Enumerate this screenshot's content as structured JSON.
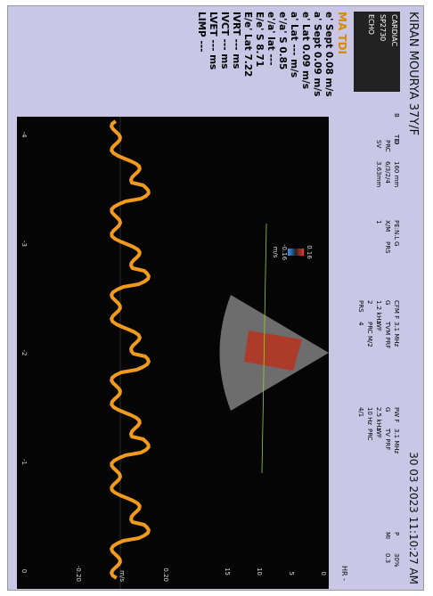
{
  "header": {
    "patient": "KIRAN MOURYA 37Y/F",
    "datetime": "30 03 2023 11:10:27 AM",
    "preset": [
      "CARDIAC",
      "SP2730",
      "ECHO"
    ],
    "params": [
      [
        "B",
        "TEI"
      ],
      [
        "D",
        "160 mm",
        "PRC",
        "6/3/2/4",
        "SV",
        "3.63mm"
      ],
      [
        "PE:N.L",
        "G",
        "X/M",
        "PRS",
        "1"
      ],
      [
        "CFM F",
        "3.1 MHz",
        "G",
        "TVM PRF",
        "1.2 kHz",
        "WF",
        "2",
        "PRC M/2",
        "PRS",
        "4"
      ],
      [
        "PW F",
        "3.1 MHz",
        "G",
        "TV PRF",
        "2.5 kHz",
        "WF",
        "10 Hz",
        "PRC",
        "4/1"
      ],
      [
        "P",
        "30%",
        "MI",
        "0.3"
      ]
    ],
    "hr": "HR -"
  },
  "panel": {
    "mode": "MA TDI",
    "measurements": [
      "e' Sept 0.08 m/s",
      "a' Sept 0.09 m/s",
      "e' Lat 0.09 m/s",
      "a' Lat --- m/s",
      "e'/a' S 0.85",
      "e'/a' lat ---",
      "E/e' S 8.71",
      "E/e' Lat 7.22",
      "IVRT --- ms",
      "IVCT --- ms",
      "LVET --- ms",
      "LIMP ---"
    ]
  },
  "image": {
    "depth_ticks": [
      "0",
      "5",
      "10",
      "15"
    ],
    "color_scale": [
      "0.16",
      "-0.16",
      "m/s"
    ],
    "velocity_ticks": [
      "0.20",
      "m/s",
      "-0.20"
    ],
    "time_ticks": [
      "-4",
      "-3",
      "-2",
      "-1",
      "0"
    ]
  }
}
